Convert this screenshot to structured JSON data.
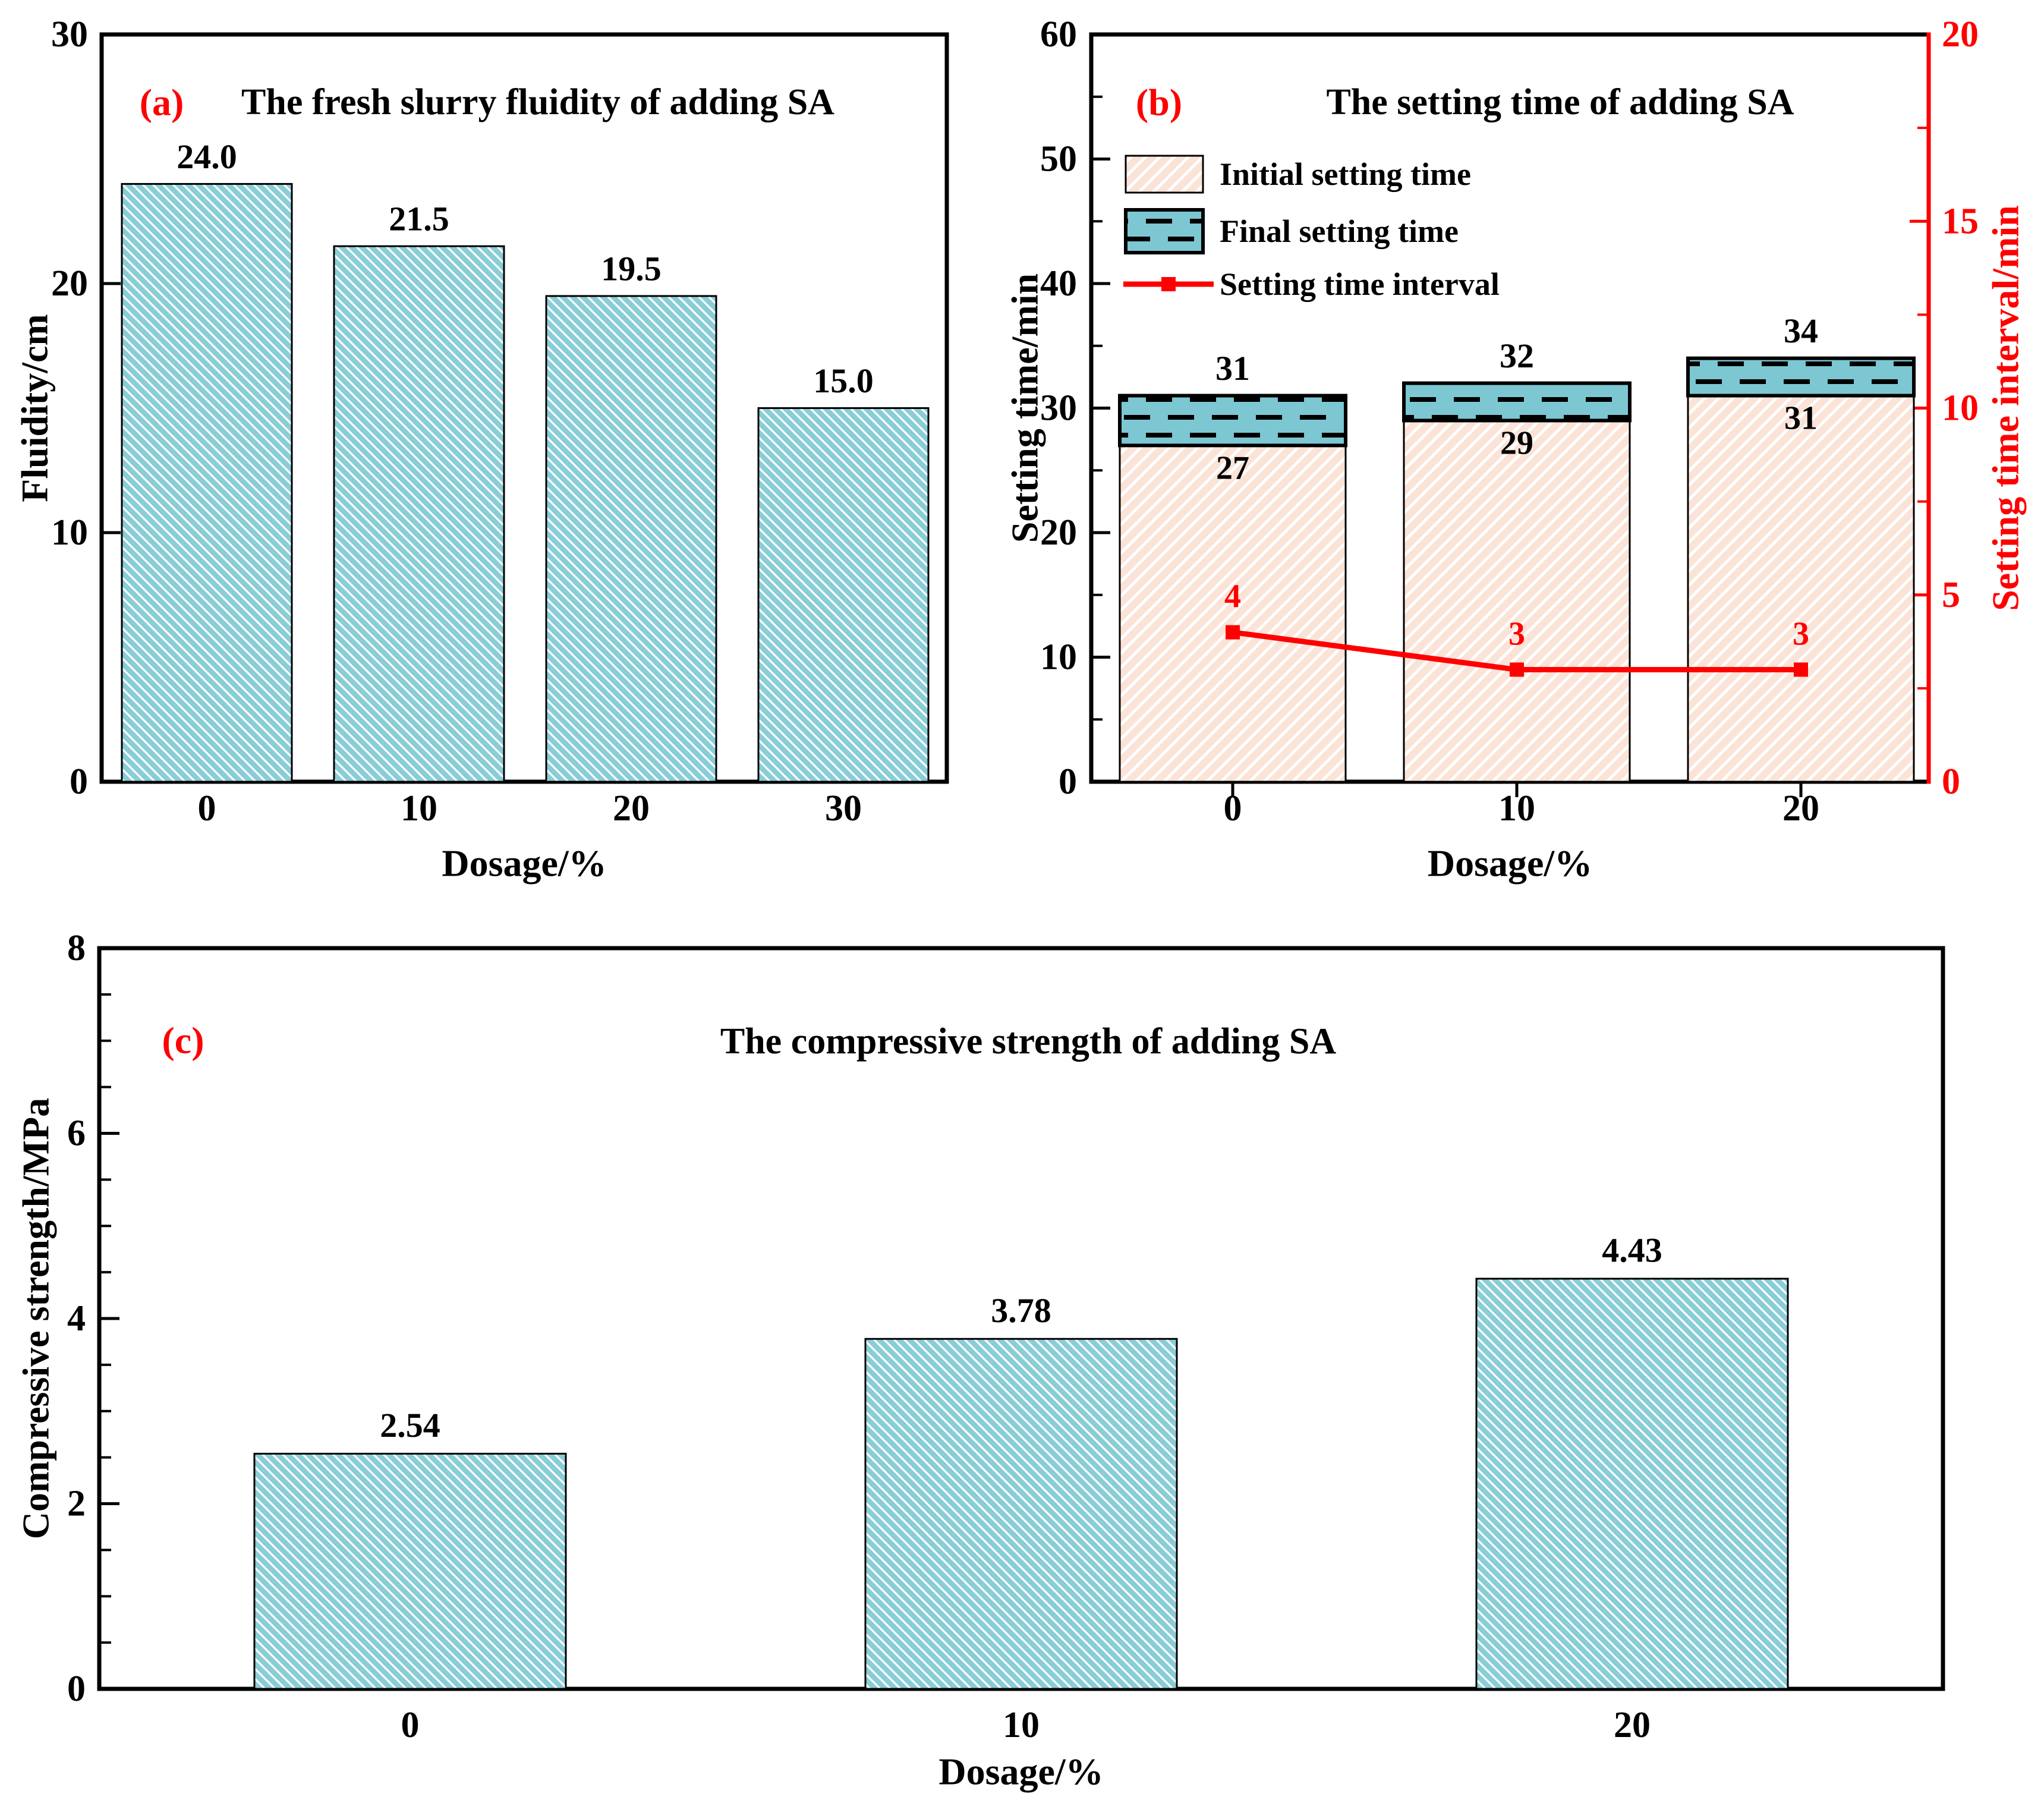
{
  "colors": {
    "teal": "#89cdd7",
    "teal_dark": "#7cc7d2",
    "pink": "#fbe3d7",
    "white": "#ffffff",
    "black": "#000000",
    "red": "#ff0000"
  },
  "chart_data": [
    {
      "id": "a",
      "type": "bar",
      "panel_label": "(a)",
      "title": "The fresh slurry fluidity of adding SA",
      "xlabel": "Dosage/%",
      "ylabel": "Fluidity/cm",
      "ylim": [
        0,
        30
      ],
      "yticks": [
        "0",
        "10",
        "20",
        "30"
      ],
      "categories": [
        "0",
        "10",
        "20",
        "30"
      ],
      "values": [
        24.0,
        21.5,
        19.5,
        15.0
      ],
      "value_labels": [
        "24.0",
        "21.5",
        "19.5",
        "15.0"
      ],
      "legend_position": "none",
      "grid": false
    },
    {
      "id": "b",
      "type": "stacked-bar-line",
      "panel_label": "(b)",
      "title": "The setting time of adding SA",
      "xlabel": "Dosage/%",
      "ylabel": "Setting time/min",
      "ylabel_right": "Setting time interval/min",
      "ylim": [
        0,
        60
      ],
      "yticks": [
        "0",
        "10",
        "20",
        "30",
        "40",
        "50",
        "60"
      ],
      "ylim_right": [
        0,
        20
      ],
      "yticks_right": [
        "0",
        "5",
        "10",
        "15",
        "20"
      ],
      "categories": [
        "0",
        "10",
        "20"
      ],
      "series": [
        {
          "name": "Initial setting time",
          "type": "bar",
          "values": [
            27,
            29,
            31
          ],
          "value_labels": [
            "27",
            "29",
            "31"
          ]
        },
        {
          "name": "Final setting time",
          "type": "bar",
          "values": [
            31,
            32,
            34
          ],
          "value_labels": [
            "31",
            "32",
            "34"
          ]
        },
        {
          "name": "Setting time interval",
          "type": "line",
          "axis": "right",
          "values": [
            4,
            3,
            3
          ],
          "value_labels": [
            "4",
            "3",
            "3"
          ]
        }
      ],
      "legend_position": "upper-left",
      "grid": false
    },
    {
      "id": "c",
      "type": "bar",
      "panel_label": "(c)",
      "title": "The compressive strength of adding SA",
      "xlabel": "Dosage/%",
      "ylabel": "Compressive strength/MPa",
      "ylim": [
        0,
        8
      ],
      "yticks": [
        "0",
        "2",
        "4",
        "6",
        "8"
      ],
      "categories": [
        "0",
        "10",
        "20"
      ],
      "values": [
        2.54,
        3.78,
        4.43
      ],
      "value_labels": [
        "2.54",
        "3.78",
        "4.43"
      ],
      "legend_position": "none",
      "grid": false
    }
  ]
}
